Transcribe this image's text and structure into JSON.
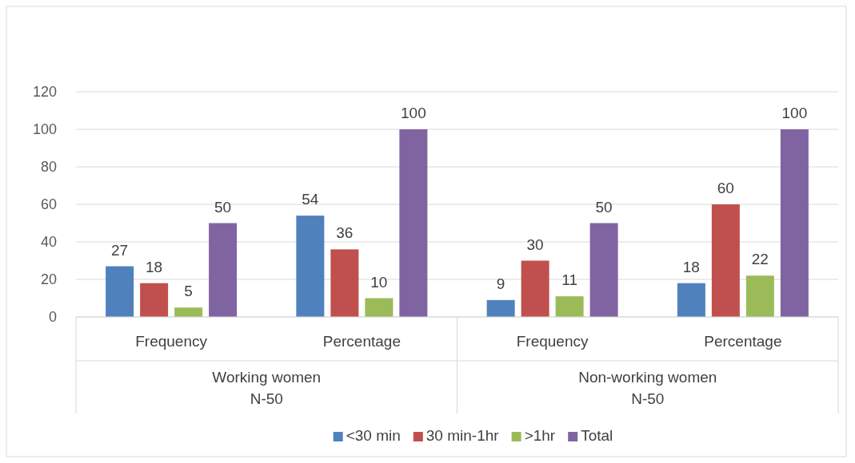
{
  "chart_data": {
    "type": "bar",
    "categories": [
      "Frequency",
      "Percentage",
      "Frequency",
      "Percentage"
    ],
    "series": [
      {
        "name": "<30 min",
        "color": "#4f81bd",
        "values": [
          27,
          54,
          9,
          18
        ]
      },
      {
        "name": "30 min-1hr",
        "color": "#c0504d",
        "values": [
          18,
          36,
          30,
          60
        ]
      },
      {
        "name": ">1hr",
        "color": "#9bbb59",
        "values": [
          5,
          10,
          11,
          22
        ]
      },
      {
        "name": "Total",
        "color": "#8064a2",
        "values": [
          50,
          100,
          50,
          100
        ]
      }
    ],
    "ylim": [
      0,
      120
    ],
    "yticks": [
      0,
      20,
      40,
      60,
      80,
      100,
      120
    ],
    "grid": "y",
    "data_labels": true,
    "legend": "bottom",
    "annotations": [
      "Working women\nN-50",
      "Non-working women\nN-50"
    ]
  }
}
